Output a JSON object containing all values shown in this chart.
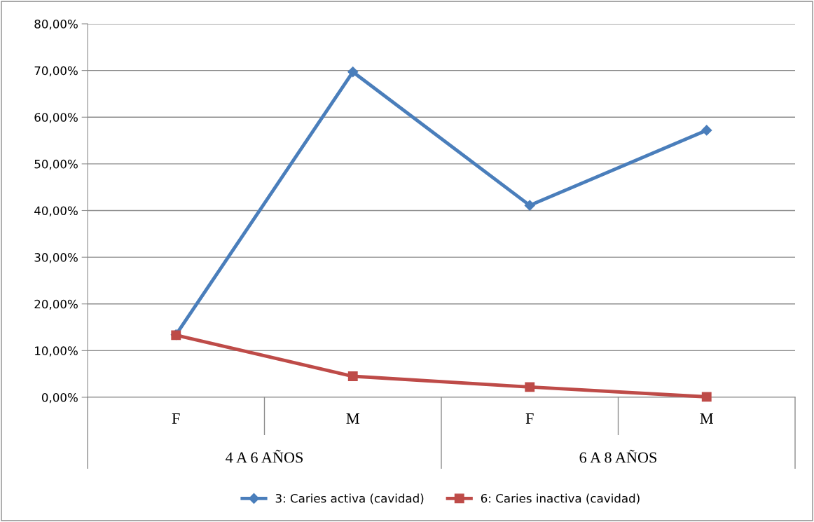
{
  "chart_data": {
    "type": "line",
    "categories": [
      "F",
      "M",
      "F",
      "M"
    ],
    "series": [
      {
        "name": "3: Caries activa (cavidad)",
        "color": "#4a7ebb",
        "marker": "diamond",
        "values": [
          13.4,
          69.7,
          41.1,
          57.2
        ]
      },
      {
        "name": "6: Caries inactiva (cavidad)",
        "color": "#be4b48",
        "marker": "square",
        "values": [
          13.3,
          4.5,
          2.2,
          0.1
        ]
      }
    ],
    "ylim": [
      0,
      80
    ],
    "yticks": [
      {
        "value": 0,
        "label": "0,00%"
      },
      {
        "value": 10,
        "label": "10,00%"
      },
      {
        "value": 20,
        "label": "20,00%"
      },
      {
        "value": 30,
        "label": "30,00%"
      },
      {
        "value": 40,
        "label": "40,00%"
      },
      {
        "value": 50,
        "label": "50,00%"
      },
      {
        "value": 60,
        "label": "60,00%"
      },
      {
        "value": 70,
        "label": "70,00%"
      },
      {
        "value": 80,
        "label": "80,00%"
      }
    ],
    "annotations": [
      "4 A 6 AÑOS",
      "6 A 8 AÑOS"
    ],
    "grid": "y",
    "legend": "bottom",
    "line_style": "solid"
  }
}
